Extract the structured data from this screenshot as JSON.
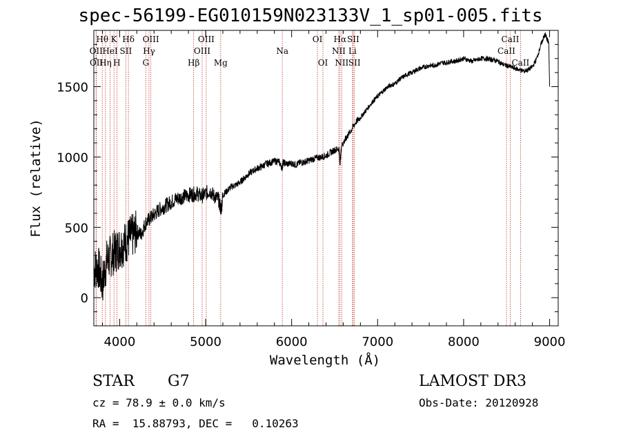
{
  "chart_data": {
    "type": "line",
    "title": "spec-56199-EG010159N023133V_1_sp01-005.fits",
    "xlabel": "Wavelength (Å)",
    "ylabel": "Flux (relative)",
    "xlim": [
      3700,
      9100
    ],
    "ylim": [
      -200,
      1900
    ],
    "xticks": [
      "4000",
      "5000",
      "6000",
      "7000",
      "8000",
      "9000"
    ],
    "yticks": [
      "0",
      "500",
      "1000",
      "1500"
    ],
    "series": [
      {
        "name": "spectrum",
        "x": [
          3700,
          3750,
          3800,
          3850,
          3900,
          3950,
          4000,
          4050,
          4100,
          4150,
          4200,
          4250,
          4300,
          4350,
          4400,
          4450,
          4500,
          4550,
          4600,
          4650,
          4700,
          4750,
          4800,
          4850,
          4900,
          4950,
          5000,
          5050,
          5100,
          5150,
          5180,
          5200,
          5250,
          5300,
          5350,
          5400,
          5450,
          5500,
          5550,
          5600,
          5650,
          5700,
          5750,
          5800,
          5850,
          5890,
          5900,
          5950,
          6000,
          6050,
          6100,
          6150,
          6200,
          6250,
          6300,
          6350,
          6400,
          6450,
          6500,
          6550,
          6563,
          6580,
          6620,
          6650,
          6700,
          6750,
          6800,
          6850,
          6900,
          6950,
          7000,
          7050,
          7100,
          7150,
          7200,
          7250,
          7300,
          7350,
          7400,
          7450,
          7500,
          7550,
          7600,
          7650,
          7700,
          7750,
          7800,
          7850,
          7900,
          7950,
          8000,
          8050,
          8100,
          8150,
          8200,
          8250,
          8300,
          8350,
          8400,
          8450,
          8500,
          8550,
          8600,
          8650,
          8700,
          8750,
          8800,
          8850,
          8900,
          8930,
          8950,
          8970,
          8990,
          9000
        ],
        "y": [
          200,
          220,
          100,
          260,
          300,
          330,
          360,
          380,
          420,
          440,
          470,
          450,
          530,
          560,
          590,
          620,
          640,
          660,
          680,
          700,
          710,
          720,
          730,
          735,
          740,
          720,
          740,
          760,
          720,
          700,
          620,
          730,
          760,
          790,
          800,
          820,
          850,
          880,
          900,
          920,
          930,
          950,
          960,
          970,
          970,
          920,
          960,
          950,
          955,
          945,
          960,
          965,
          975,
          985,
          995,
          1000,
          1010,
          1030,
          1050,
          1060,
          950,
          1080,
          1120,
          1150,
          1200,
          1250,
          1280,
          1320,
          1360,
          1400,
          1430,
          1460,
          1490,
          1510,
          1520,
          1550,
          1570,
          1590,
          1600,
          1620,
          1630,
          1640,
          1650,
          1650,
          1660,
          1670,
          1670,
          1680,
          1680,
          1690,
          1700,
          1690,
          1680,
          1690,
          1700,
          1700,
          1695,
          1690,
          1680,
          1660,
          1650,
          1640,
          1630,
          1620,
          1610,
          1620,
          1640,
          1700,
          1800,
          1850,
          1870,
          1840,
          1810,
          1500
        ]
      }
    ],
    "lines": [
      {
        "x": 3726,
        "label": "OII",
        "row": 2
      },
      {
        "x": 3729,
        "label": "OII",
        "row": 3
      },
      {
        "x": 3798,
        "label": "Hθ",
        "row": 1
      },
      {
        "x": 3835,
        "label": "Hη",
        "row": 3
      },
      {
        "x": 3889,
        "label": "HeI",
        "row": 2
      },
      {
        "x": 3934,
        "label": "K",
        "row": 1
      },
      {
        "x": 3968,
        "label": "H",
        "row": 3
      },
      {
        "x": 4072,
        "label": "SII",
        "row": 2
      },
      {
        "x": 4102,
        "label": "Hδ",
        "row": 1
      },
      {
        "x": 4304,
        "label": "G",
        "row": 3
      },
      {
        "x": 4341,
        "label": "Hγ",
        "row": 2
      },
      {
        "x": 4363,
        "label": "OIII",
        "row": 1
      },
      {
        "x": 4861,
        "label": "Hβ",
        "row": 3
      },
      {
        "x": 4959,
        "label": "OIII",
        "row": 2
      },
      {
        "x": 5007,
        "label": "OIII",
        "row": 1
      },
      {
        "x": 5175,
        "label": "Mg",
        "row": 3
      },
      {
        "x": 5892,
        "label": "Na",
        "row": 2
      },
      {
        "x": 6300,
        "label": "OI",
        "row": 1
      },
      {
        "x": 6364,
        "label": "OI",
        "row": 3
      },
      {
        "x": 6548,
        "label": "NII",
        "row": 2
      },
      {
        "x": 6563,
        "label": "Hα",
        "row": 1
      },
      {
        "x": 6583,
        "label": "NII",
        "row": 3
      },
      {
        "x": 6708,
        "label": "Li",
        "row": 2
      },
      {
        "x": 6716,
        "label": "SII",
        "row": 1
      },
      {
        "x": 6731,
        "label": "SII",
        "row": 3
      },
      {
        "x": 8498,
        "label": "CaII",
        "row": 2
      },
      {
        "x": 8542,
        "label": "CaII",
        "row": 1
      },
      {
        "x": 8662,
        "label": "CaII",
        "row": 3
      }
    ]
  },
  "info": {
    "object_class": "STAR",
    "subclass": "G7",
    "survey": "LAMOST DR3",
    "redshift_text": "cz = 78.9 ± 0.0 km/s",
    "obs_date_text": "Obs-Date: 20120928",
    "coords_text": "RA =  15.88793, DEC =   0.10263"
  },
  "colors": {
    "line_marker": "#c0392b",
    "spectrum": "#000000",
    "axes": "#000000"
  }
}
